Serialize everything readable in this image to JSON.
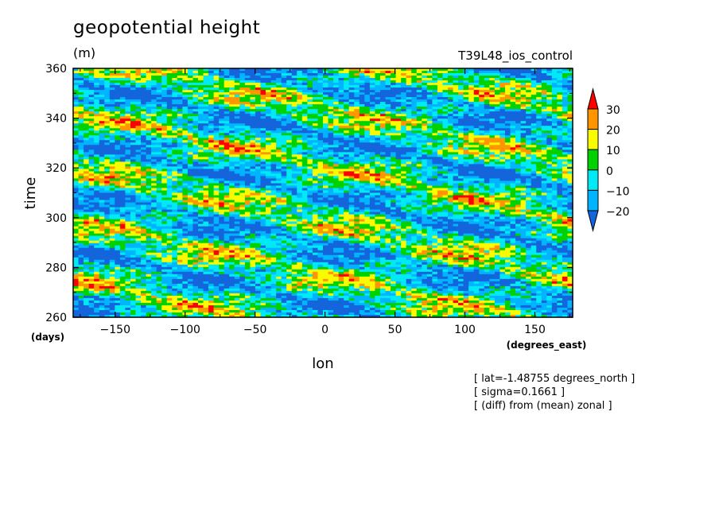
{
  "chart_data": {
    "type": "heatmap",
    "title": "geopotential height",
    "units": "(m)",
    "run_label": "T39L48_ios_control",
    "xlabel": "lon",
    "ylabel": "time",
    "x_units": "(degrees_east)",
    "y_units": "(days)",
    "xlim": [
      -180,
      177
    ],
    "ylim": [
      260,
      360
    ],
    "x_ticks": [
      -150,
      -100,
      -50,
      0,
      50,
      100,
      150
    ],
    "y_ticks": [
      260,
      280,
      300,
      320,
      340,
      360
    ],
    "colorbar": {
      "levels": [
        -20,
        -10,
        0,
        10,
        20,
        30
      ],
      "colors": [
        "#1464dc",
        "#00b4ff",
        "#00eaf5",
        "#00d200",
        "#fafa00",
        "#ff9600",
        "#ff0000"
      ],
      "extend": "both"
    },
    "field_description": "zonally anomalous field with eastward-propagating (positive-sloped) bands"
  },
  "notes": [
    "[ lat=-1.48755 degrees_north ]",
    "[ sigma=0.1661 ]",
    "[ (diff) from (mean) zonal ]"
  ]
}
